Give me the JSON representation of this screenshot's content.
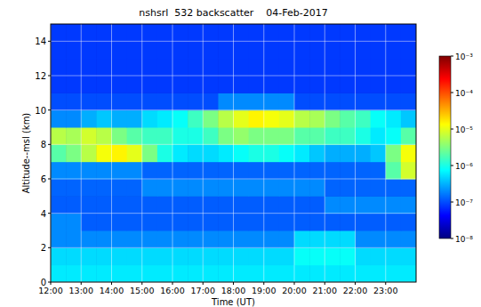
{
  "chart_data": {
    "type": "heatmap",
    "title": "nshsrl  532 backscatter    04-Feb-2017",
    "x_label": "Time (UT)",
    "y_label": "Altitude--msl (km)",
    "xlim": [
      12,
      24
    ],
    "ylim": [
      0,
      15
    ],
    "xticks": [
      {
        "value": 12,
        "label": "12:00"
      },
      {
        "value": 13,
        "label": "13:00"
      },
      {
        "value": 14,
        "label": "14:00"
      },
      {
        "value": 15,
        "label": "15:00"
      },
      {
        "value": 16,
        "label": "16:00"
      },
      {
        "value": 17,
        "label": "17:00"
      },
      {
        "value": 18,
        "label": "18:00"
      },
      {
        "value": 19,
        "label": "19:00"
      },
      {
        "value": 20,
        "label": "20:00"
      },
      {
        "value": 21,
        "label": "21:00"
      },
      {
        "value": 22,
        "label": "22:00"
      },
      {
        "value": 23,
        "label": "23:00"
      }
    ],
    "yticks": [
      0,
      2,
      4,
      6,
      8,
      10,
      12,
      14
    ],
    "grid": true,
    "x_bins": [
      12,
      12.5,
      13,
      13.5,
      14,
      14.5,
      15,
      15.5,
      16,
      16.5,
      17,
      17.5,
      18,
      18.5,
      19,
      19.5,
      20,
      20.5,
      21,
      21.5,
      22,
      22.5,
      23,
      23.5,
      24
    ],
    "y_bins": [
      0,
      1,
      2,
      3,
      4,
      5,
      6,
      7,
      8,
      9,
      10,
      11,
      12,
      13,
      14,
      15
    ],
    "cells": [
      [
        6e-07,
        6e-07,
        6e-07,
        6e-07,
        6e-07,
        6e-07,
        6e-07,
        6e-07,
        6e-07,
        6e-07,
        6e-07,
        6e-07,
        6e-07,
        6e-07,
        6e-07,
        6e-07,
        6e-07,
        6e-07,
        6e-07,
        6e-07,
        6e-07,
        6e-07,
        6e-07,
        6e-07
      ],
      [
        5e-07,
        5e-07,
        5e-07,
        5e-07,
        5e-07,
        5e-07,
        5e-07,
        5e-07,
        5e-07,
        5e-07,
        5e-07,
        5e-07,
        5e-07,
        5e-07,
        5e-07,
        5e-07,
        8e-07,
        8e-07,
        8e-07,
        8e-07,
        5e-07,
        5e-07,
        5e-07,
        5e-07
      ],
      [
        2e-07,
        2e-07,
        2e-07,
        2e-07,
        2e-07,
        2e-07,
        2e-07,
        2e-07,
        2e-07,
        2e-07,
        2e-07,
        2e-07,
        2e-07,
        2e-07,
        2e-07,
        2e-07,
        5e-07,
        5e-07,
        5e-07,
        5e-07,
        2e-07,
        2e-07,
        2e-07,
        2e-07
      ],
      [
        2e-07,
        2e-07,
        1.2e-07,
        1.2e-07,
        1.2e-07,
        1.2e-07,
        1.2e-07,
        1.2e-07,
        1.2e-07,
        1.2e-07,
        1.2e-07,
        1.2e-07,
        1.2e-07,
        1.2e-07,
        1.2e-07,
        1.2e-07,
        1.2e-07,
        1.2e-07,
        1.2e-07,
        1.2e-07,
        1.2e-07,
        1.2e-07,
        1.2e-07,
        1.2e-07
      ],
      [
        1.2e-07,
        1.2e-07,
        1.2e-07,
        1.2e-07,
        1.2e-07,
        1.2e-07,
        1.2e-07,
        1.2e-07,
        1.2e-07,
        1.2e-07,
        1.2e-07,
        1.2e-07,
        1.2e-07,
        1.2e-07,
        1.2e-07,
        1.2e-07,
        1.2e-07,
        1.2e-07,
        2e-07,
        2e-07,
        2e-07,
        2e-07,
        2e-07,
        2e-07
      ],
      [
        1.3e-07,
        1.3e-07,
        1.3e-07,
        1.3e-07,
        1.3e-07,
        1.3e-07,
        2e-07,
        2e-07,
        2e-07,
        2e-07,
        2e-07,
        2e-07,
        2e-07,
        2e-07,
        2e-07,
        2e-07,
        2e-07,
        2e-07,
        1.3e-07,
        1.3e-07,
        1.3e-07,
        1.3e-07,
        1.3e-07,
        1.3e-07
      ],
      [
        2e-07,
        2e-07,
        2e-07,
        2e-07,
        2e-07,
        2e-07,
        1.3e-07,
        1.3e-07,
        1.3e-07,
        1.3e-07,
        1.3e-07,
        1.3e-07,
        1.3e-07,
        1.3e-07,
        1.3e-07,
        1.3e-07,
        1.3e-07,
        1.3e-07,
        1.3e-07,
        1.3e-07,
        1.3e-07,
        1.3e-07,
        2e-06,
        8e-06
      ],
      [
        2e-06,
        3e-06,
        6e-06,
        1.2e-05,
        1.5e-05,
        1e-05,
        3e-06,
        1e-06,
        6e-07,
        5e-07,
        5e-07,
        6e-07,
        8e-07,
        1e-06,
        1e-06,
        8e-07,
        6e-07,
        4e-07,
        3e-07,
        3e-07,
        3e-07,
        4e-07,
        3e-06,
        1.2e-05
      ],
      [
        6e-06,
        5e-06,
        8e-06,
        6e-06,
        3e-06,
        2e-06,
        1.5e-06,
        1.5e-06,
        1e-06,
        1e-06,
        1.5e-06,
        3e-06,
        4e-06,
        3e-06,
        3e-06,
        3e-06,
        2e-06,
        2e-06,
        1.5e-06,
        1.5e-06,
        1e-06,
        6e-07,
        8e-07,
        2e-06
      ],
      [
        2e-07,
        2e-07,
        3e-07,
        4e-07,
        3e-07,
        3e-07,
        5e-07,
        6e-07,
        8e-07,
        1.5e-06,
        3e-06,
        6e-06,
        1e-05,
        1.5e-05,
        1.2e-05,
        1e-05,
        6e-06,
        5e-06,
        3e-06,
        2e-06,
        1.5e-06,
        8e-07,
        6e-07,
        4e-07
      ],
      [
        1e-07,
        1e-07,
        1e-07,
        1e-07,
        1e-07,
        1e-07,
        1e-07,
        1e-07,
        1e-07,
        1e-07,
        1e-07,
        2e-07,
        2e-07,
        2e-07,
        2e-07,
        2e-07,
        1e-07,
        1e-07,
        1e-07,
        1e-07,
        1e-07,
        1e-07,
        1e-07,
        1e-07
      ],
      [
        8e-08,
        8e-08,
        8e-08,
        8e-08,
        8e-08,
        8e-08,
        8e-08,
        8e-08,
        8e-08,
        8e-08,
        8e-08,
        8e-08,
        8e-08,
        8e-08,
        8e-08,
        8e-08,
        8e-08,
        8e-08,
        8e-08,
        8e-08,
        8e-08,
        8e-08,
        8e-08,
        8e-08
      ],
      [
        8e-08,
        8e-08,
        8e-08,
        8e-08,
        8e-08,
        8e-08,
        8e-08,
        8e-08,
        8e-08,
        8e-08,
        8e-08,
        8e-08,
        8e-08,
        8e-08,
        8e-08,
        8e-08,
        8e-08,
        8e-08,
        8e-08,
        8e-08,
        8e-08,
        8e-08,
        8e-08,
        8e-08
      ],
      [
        8e-08,
        8e-08,
        8e-08,
        8e-08,
        8e-08,
        8e-08,
        8e-08,
        8e-08,
        8e-08,
        8e-08,
        8e-08,
        8e-08,
        8e-08,
        8e-08,
        8e-08,
        8e-08,
        8e-08,
        8e-08,
        8e-08,
        8e-08,
        8e-08,
        8e-08,
        8e-08,
        8e-08
      ],
      [
        8e-08,
        8e-08,
        8e-08,
        8e-08,
        8e-08,
        8e-08,
        8e-08,
        8e-08,
        8e-08,
        8e-08,
        8e-08,
        8e-08,
        8e-08,
        8e-08,
        8e-08,
        8e-08,
        8e-08,
        8e-08,
        8e-08,
        8e-08,
        8e-08,
        8e-08,
        8e-08,
        8e-08
      ]
    ],
    "color_range": [
      1e-08,
      0.001
    ],
    "color_ticks": [
      {
        "value": 0.001,
        "label": "10⁻³"
      },
      {
        "value": 0.0001,
        "label": "10⁻⁴"
      },
      {
        "value": 1e-05,
        "label": "10⁻⁵"
      },
      {
        "value": 1e-06,
        "label": "10⁻⁶"
      },
      {
        "value": 1e-07,
        "label": "10⁻⁷"
      },
      {
        "value": 1e-08,
        "label": "10⁻⁸"
      }
    ]
  }
}
